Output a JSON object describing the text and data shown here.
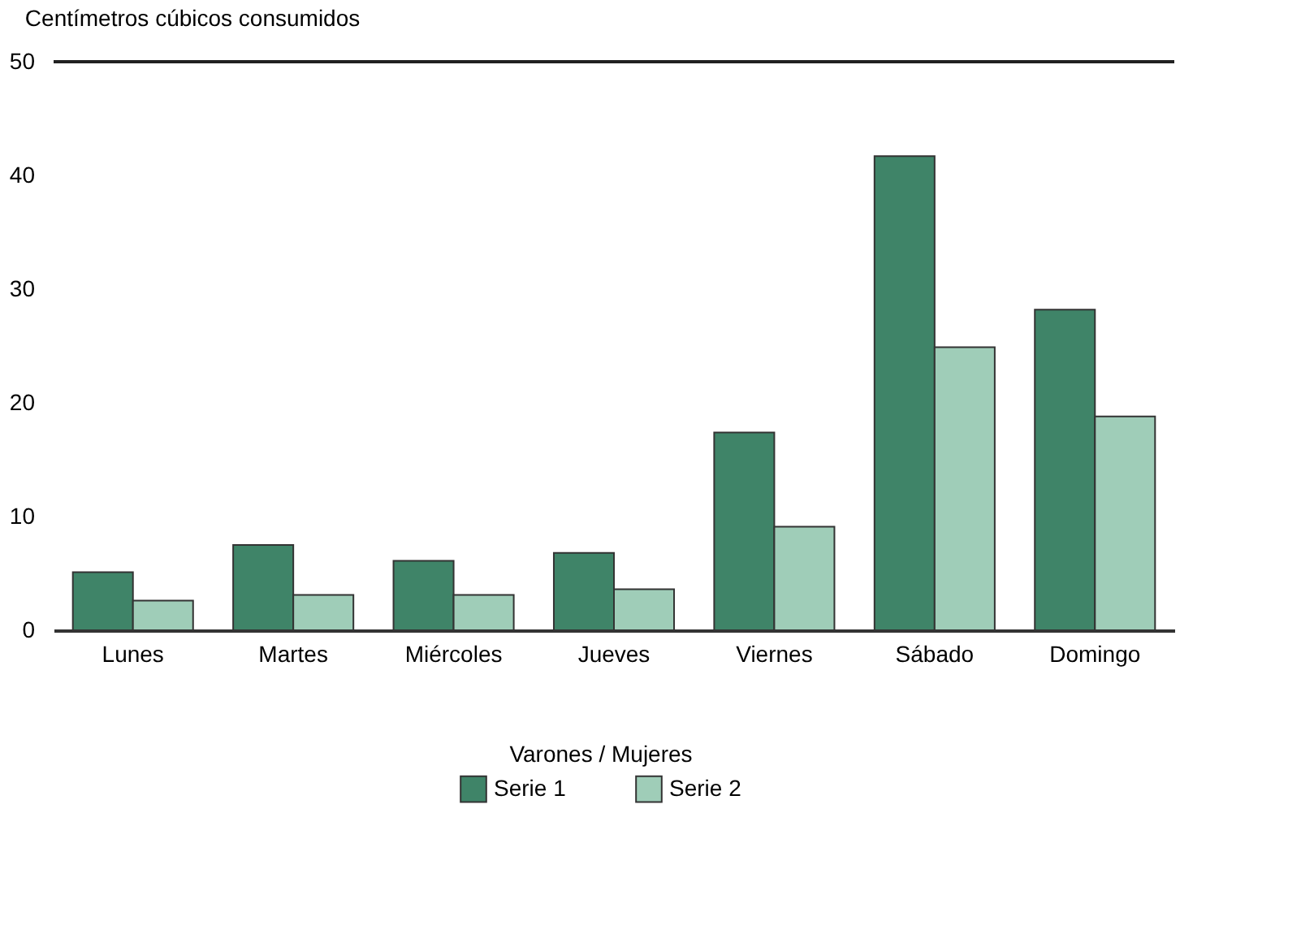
{
  "chart_data": {
    "type": "bar",
    "ylabel": "Centímetros cúbicos consumidos",
    "legend_title": "Varones / Mujeres",
    "categories": [
      "Lunes",
      "Martes",
      "Miércoles",
      "Jueves",
      "Viernes",
      "Sábado",
      "Domingo"
    ],
    "series": [
      {
        "name": "Serie 1",
        "color": "#3f8468",
        "values": [
          5.1,
          7.5,
          6.1,
          6.8,
          17.4,
          41.7,
          28.2
        ]
      },
      {
        "name": "Serie 2",
        "color": "#9fcdb8",
        "values": [
          2.6,
          3.1,
          3.1,
          3.6,
          9.1,
          24.9,
          18.8
        ]
      }
    ],
    "ylim": [
      0,
      50
    ],
    "yticks": [
      0,
      10,
      20,
      30,
      40,
      50
    ],
    "grid": false,
    "legend": "bottom",
    "ref_lines": [
      {
        "axis": "y",
        "value": 50,
        "color": "#222222"
      }
    ]
  }
}
